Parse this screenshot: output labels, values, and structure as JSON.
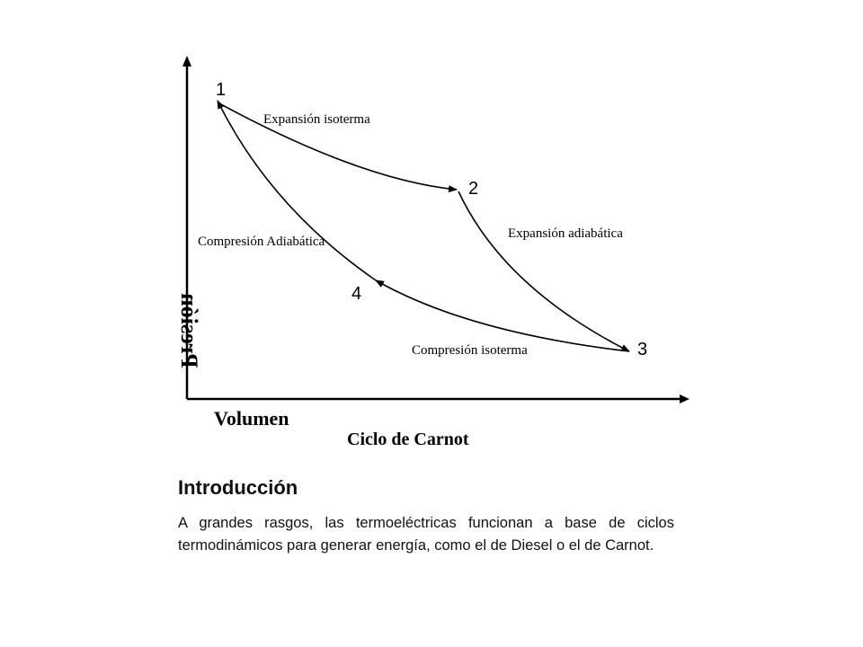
{
  "diagram": {
    "axis_y_label": "Presión",
    "axis_x_label": "Volumen",
    "caption": "Ciclo de Carnot",
    "points": [
      {
        "id": "p1",
        "label": "1"
      },
      {
        "id": "p2",
        "label": "2"
      },
      {
        "id": "p3",
        "label": "3"
      },
      {
        "id": "p4",
        "label": "4"
      }
    ],
    "processes": {
      "expansion_isoterma": "Expansión isoterma",
      "expansion_adiabatica": "Expansión adiabática",
      "compresion_isoterma": "Compresión isoterma",
      "compresion_adiabatica": "Compresión Adiabática"
    }
  },
  "section": {
    "heading": "Introducción",
    "paragraph": "A grandes rasgos, las termoeléctricas funcionan a base de ciclos termodinámicos para generar energía, como el de Diesel o el de Carnot."
  }
}
